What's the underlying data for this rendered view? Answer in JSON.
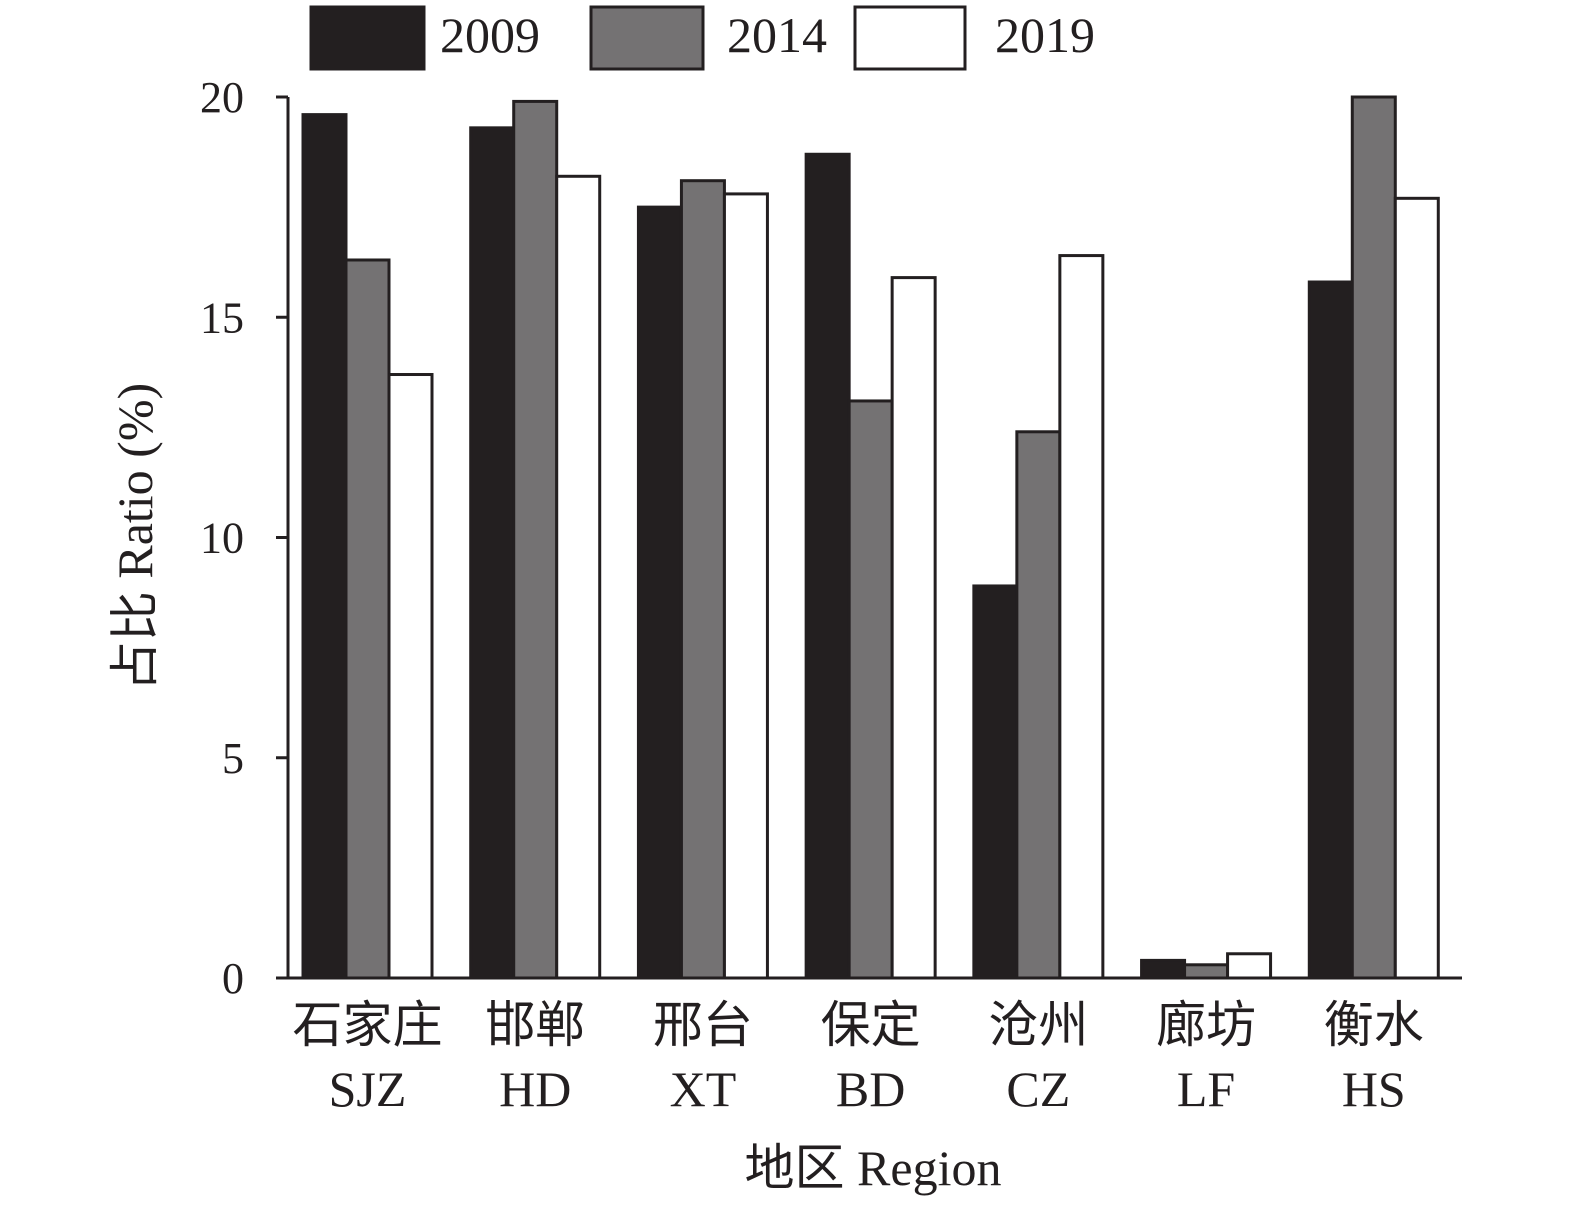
{
  "chart_data": {
    "type": "bar",
    "categories_cn": [
      "石家庄",
      "邯郸",
      "邢台",
      "保定",
      "沧州",
      "廊坊",
      "衡水"
    ],
    "categories": [
      "SJZ",
      "HD",
      "XT",
      "BD",
      "CZ",
      "LF",
      "HS"
    ],
    "series": [
      {
        "name": "2009",
        "color": "#231f20",
        "values": [
          19.6,
          19.3,
          17.5,
          18.7,
          8.9,
          0.4,
          15.8
        ]
      },
      {
        "name": "2014",
        "color": "#747273",
        "values": [
          16.3,
          19.9,
          18.1,
          13.1,
          12.4,
          0.3,
          20.0
        ]
      },
      {
        "name": "2019",
        "color": "#ffffff",
        "values": [
          13.7,
          18.2,
          17.8,
          15.9,
          16.4,
          0.55,
          17.7
        ]
      }
    ],
    "xlabel": "地区 Region",
    "ylabel": "占比 Ratio (%)",
    "ylim": [
      0,
      20
    ],
    "yticks": [
      "0",
      "5",
      "10",
      "15",
      "20"
    ],
    "grid": false,
    "legend_position": "top"
  }
}
